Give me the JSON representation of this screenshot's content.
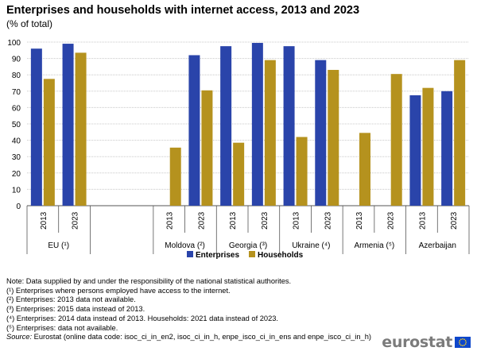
{
  "header": {
    "title": "Enterprises and households with internet access, 2013 and 2023",
    "subtitle": "(% of total)"
  },
  "colors": {
    "enterprises": "#2a44aa",
    "households": "#b5921e",
    "grid": "#c8c8c8",
    "axis": "#555555"
  },
  "chart_data": {
    "type": "bar",
    "ylim": [
      0,
      100
    ],
    "yticks": [
      0,
      10,
      20,
      30,
      40,
      50,
      60,
      70,
      80,
      90,
      100
    ],
    "grid": true,
    "legend_placement": "bottom-center",
    "series": [
      {
        "name": "Enterprises"
      },
      {
        "name": "Households"
      }
    ],
    "groups": [
      {
        "label": "EU (¹)",
        "years": [
          {
            "year": "2013",
            "values": [
              96,
              77.5
            ]
          },
          {
            "year": "2023",
            "values": [
              99,
              93.5
            ]
          }
        ]
      },
      {
        "label": "",
        "years": []
      },
      {
        "label": "Moldova (²)",
        "years": [
          {
            "year": "2013",
            "values": [
              null,
              35.5
            ]
          },
          {
            "year": "2023",
            "values": [
              92,
              70.5
            ]
          }
        ]
      },
      {
        "label": "Georgia (³)",
        "years": [
          {
            "year": "2013",
            "values": [
              97.5,
              38.5
            ]
          },
          {
            "year": "2023",
            "values": [
              99.5,
              89
            ]
          }
        ]
      },
      {
        "label": "Ukraine (⁴)",
        "years": [
          {
            "year": "2013",
            "values": [
              97.5,
              42
            ]
          },
          {
            "year": "2023",
            "values": [
              89,
              83
            ]
          }
        ]
      },
      {
        "label": "Armenia (⁵)",
        "years": [
          {
            "year": "2013",
            "values": [
              null,
              44.5
            ]
          },
          {
            "year": "2023",
            "values": [
              null,
              80.5
            ]
          }
        ]
      },
      {
        "label": "Azerbaijan",
        "years": [
          {
            "year": "2013",
            "values": [
              67.5,
              72
            ]
          },
          {
            "year": "2023",
            "values": [
              70,
              89
            ]
          }
        ]
      }
    ]
  },
  "notes": {
    "line1": "Note: Data supplied by and under the responsibility of the national statistical authorites.",
    "line2": "(¹) Enterprises where persons employed have access to the internet.",
    "line3": "(²) Enterprises: 2013 data not available.",
    "line4": "(³) Enterprises: 2015 data instead of 2013.",
    "line5": "(⁴) Enterprises: 2014 data instead of 2013. Households: 2021 data instead of 2023.",
    "line6": "(⁵) Enterprises: data not available.",
    "source_label": "Source:",
    "source_text": " Eurostat (online data code: isoc_ci_in_en2, isoc_ci_in_h, enpe_isco_ci_in_ens and enpe_isco_ci_in_h)"
  },
  "logo": {
    "text": "eurostat"
  }
}
